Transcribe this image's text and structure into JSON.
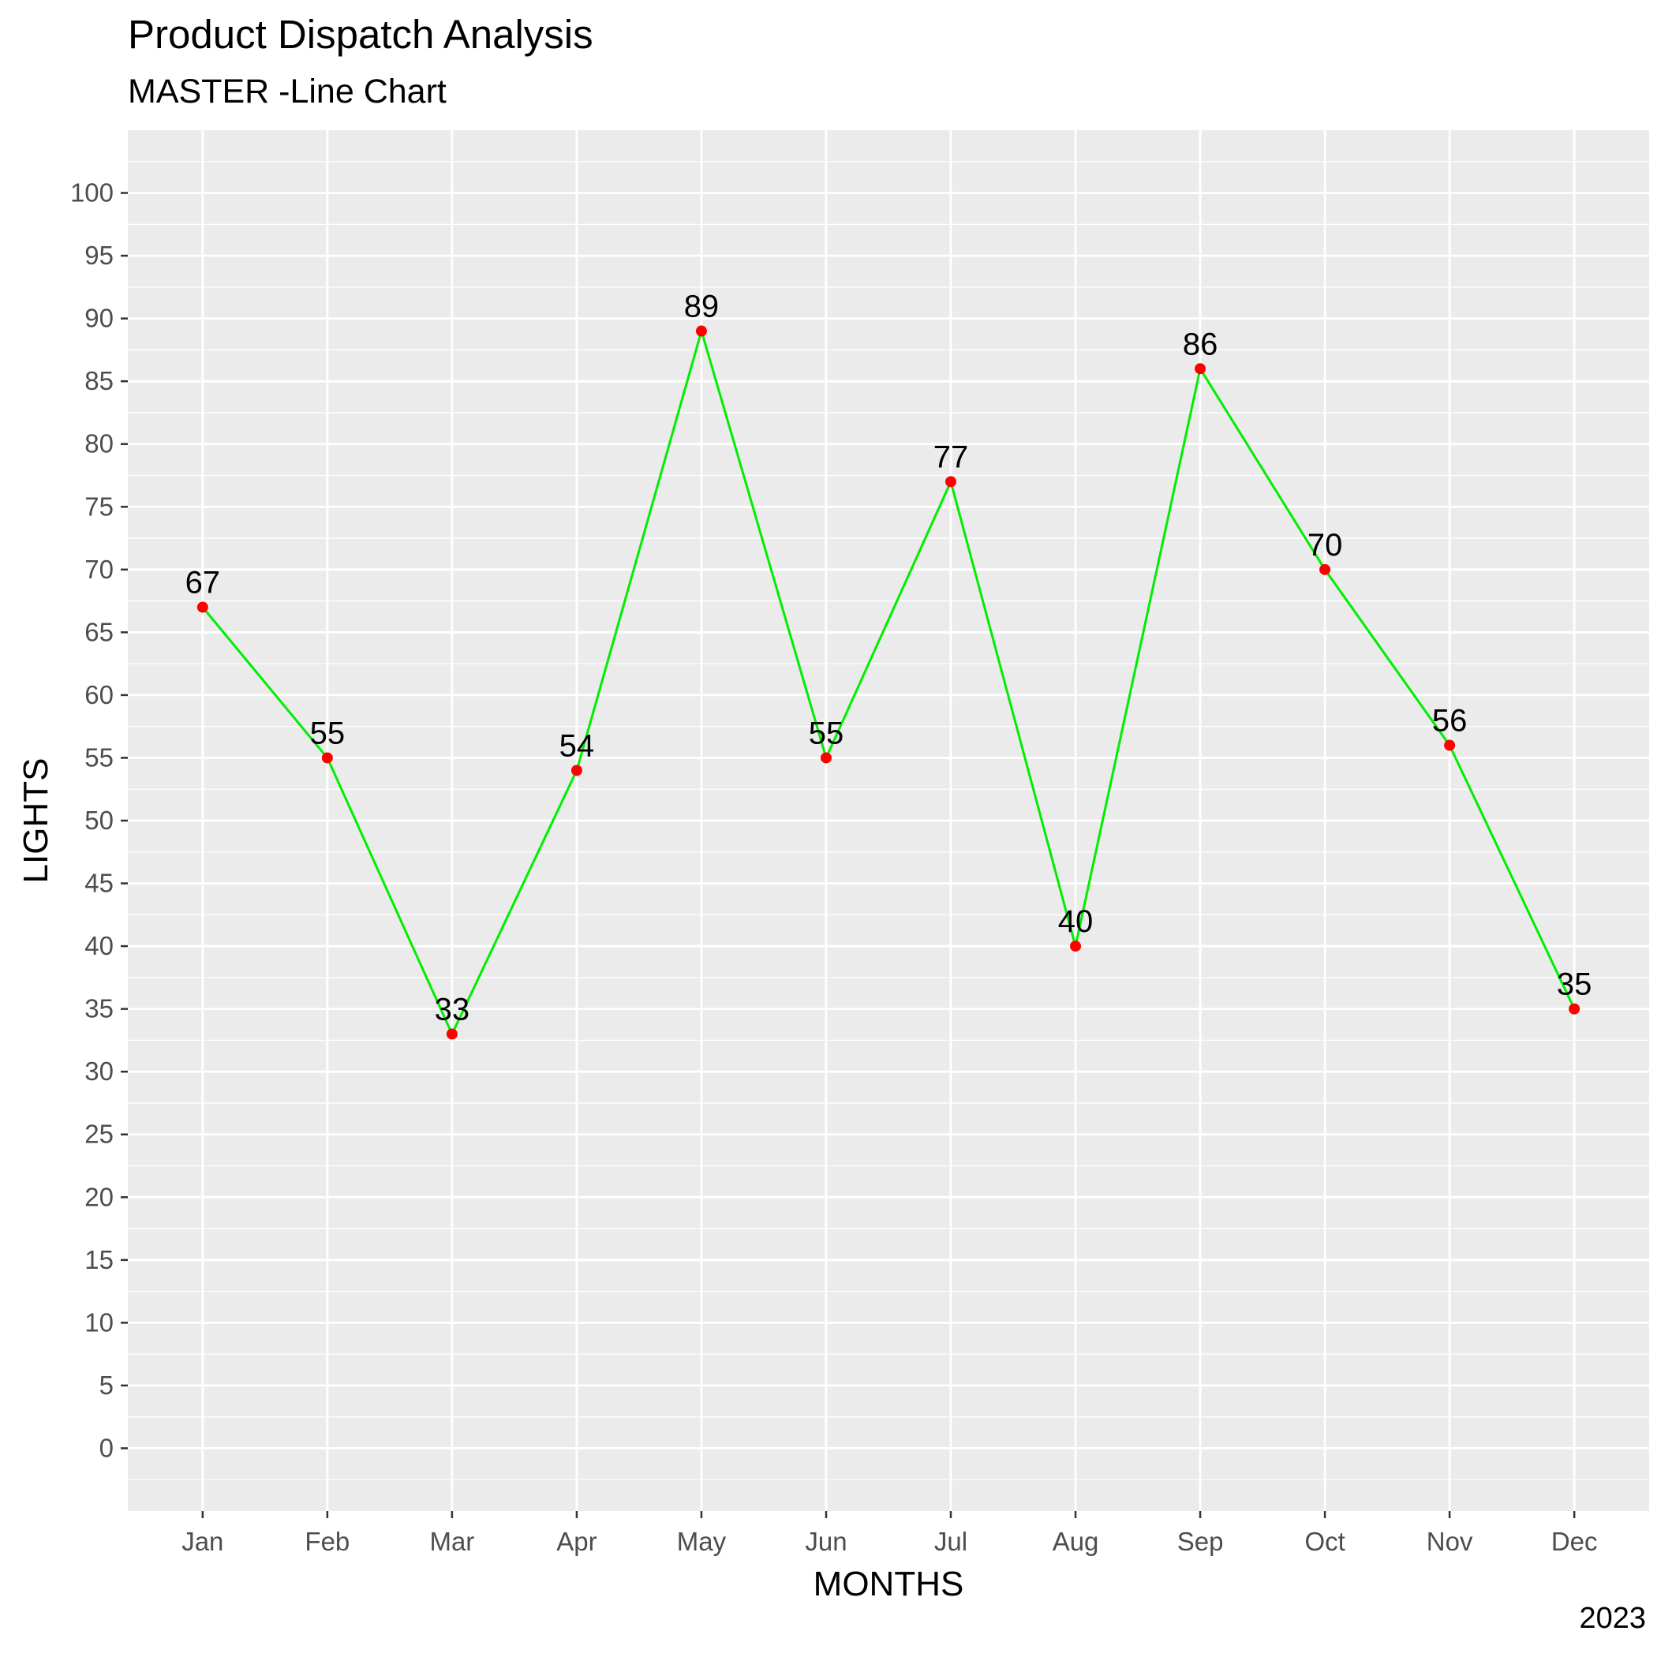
{
  "header": {
    "title": "Product Dispatch Analysis",
    "subtitle": "MASTER -Line Chart"
  },
  "caption": "2023",
  "colors": {
    "panel_background": "#ebebeb",
    "grid": "#ffffff",
    "line": "#00ee00",
    "points": "#ff0000",
    "tick_text": "#4d4d4d"
  },
  "chart_data": {
    "type": "line",
    "title": "Product Dispatch Analysis",
    "subtitle": "MASTER -Line Chart",
    "xlabel": "MONTHS",
    "ylabel": "LIGHTS",
    "categories": [
      "Jan",
      "Feb",
      "Mar",
      "Apr",
      "May",
      "Jun",
      "Jul",
      "Aug",
      "Sep",
      "Oct",
      "Nov",
      "Dec"
    ],
    "series": [
      {
        "values": [
          67,
          55,
          33,
          54,
          89,
          55,
          77,
          40,
          86,
          70,
          56,
          35
        ]
      }
    ],
    "y_ticks": [
      0,
      5,
      10,
      15,
      20,
      25,
      30,
      35,
      40,
      45,
      50,
      55,
      60,
      65,
      70,
      75,
      80,
      85,
      90,
      95,
      100
    ],
    "ylim": [
      -5,
      105
    ],
    "grid": true,
    "legend": "none",
    "data_labels": true
  }
}
